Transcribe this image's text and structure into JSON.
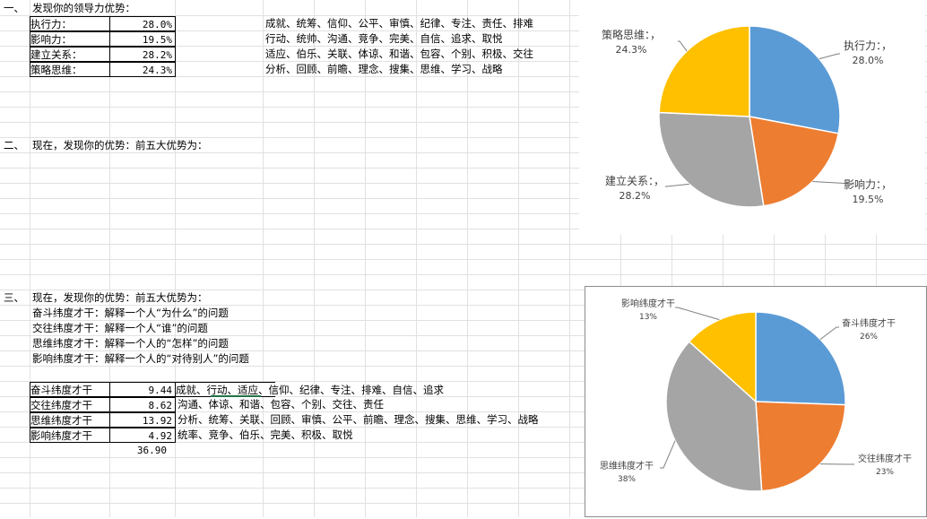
{
  "section1": {
    "number": "一、",
    "title": "发现你的领导力优势：",
    "rows": [
      {
        "label": "执行力：",
        "value": "28.0%",
        "traits": "成就、统筹、信仰、公平、审慎、纪律、专注、责任、排难"
      },
      {
        "label": "影响力：",
        "value": "19.5%",
        "traits": "行动、统帅、沟通、竞争、完美、自信、追求、取悦"
      },
      {
        "label": "建立关系：",
        "value": "28.2%",
        "traits": "适应、伯乐、关联、体谅、和谐、包容、个别、积极、交往"
      },
      {
        "label": "策略思维：",
        "value": "24.3%",
        "traits": "分析、回顾、前瞻、理念、搜集、思维、学习、战略"
      }
    ]
  },
  "section2": {
    "number": "二、",
    "title": "现在，发现你的优势：前五大优势为："
  },
  "section3": {
    "number": "三、",
    "title": "现在，发现你的优势：前五大优势为：",
    "descriptions": [
      "奋斗纬度才干：解释一个人“为什么”的问题",
      "交往纬度才干：解释一个人“谁”的问题",
      "思维纬度才干：解释一个人的“怎样”的问题",
      "影响纬度才干：解释一个人的“对待别人”的问题"
    ],
    "rows": [
      {
        "label": "奋斗纬度才干",
        "value": "9.44",
        "traits": "成就、行动、适应、信仰、纪律、专注、排难、自信、追求"
      },
      {
        "label": "交往纬度才干",
        "value": "8.62",
        "traits": "沟通、体谅、和谐、包容、个别、交往、责任"
      },
      {
        "label": "思维纬度才干",
        "value": "13.92",
        "traits": "分析、统筹、关联、回顾、审慎、公平、前瞻、理念、搜集、思维、学习、战略"
      },
      {
        "label": "影响纬度才干",
        "value": "4.92",
        "traits": "统率、竞争、伯乐、完美、积极、取悦"
      }
    ],
    "total": "36.90"
  },
  "chart_data": [
    {
      "type": "pie",
      "categories": [
        "执行力：",
        "影响力：",
        "建立关系：",
        "策略思维："
      ],
      "values": [
        28.0,
        19.5,
        28.2,
        24.3
      ],
      "labels": [
        {
          "name": "执行力：，",
          "pct": "28.0%"
        },
        {
          "name": "影响力：，",
          "pct": "19.5%"
        },
        {
          "name": "建立关系：，",
          "pct": "28.2%"
        },
        {
          "name": "策略思维：，",
          "pct": "24.3%"
        }
      ],
      "colors": [
        "#5b9bd5",
        "#ed7d31",
        "#a5a5a5",
        "#ffc000"
      ],
      "legend": "none"
    },
    {
      "type": "pie",
      "categories": [
        "奋斗纬度才干",
        "交往纬度才干",
        "思维纬度才干",
        "影响纬度才干"
      ],
      "values": [
        9.44,
        8.62,
        13.92,
        4.92
      ],
      "labels": [
        {
          "name": "奋斗纬度才干",
          "pct": "26%"
        },
        {
          "name": "交往纬度才干",
          "pct": "23%"
        },
        {
          "name": "思维纬度才干",
          "pct": "38%"
        },
        {
          "name": "影响纬度才干",
          "pct": "13%"
        }
      ],
      "colors": [
        "#5b9bd5",
        "#ed7d31",
        "#a5a5a5",
        "#ffc000"
      ],
      "legend": "none"
    }
  ]
}
